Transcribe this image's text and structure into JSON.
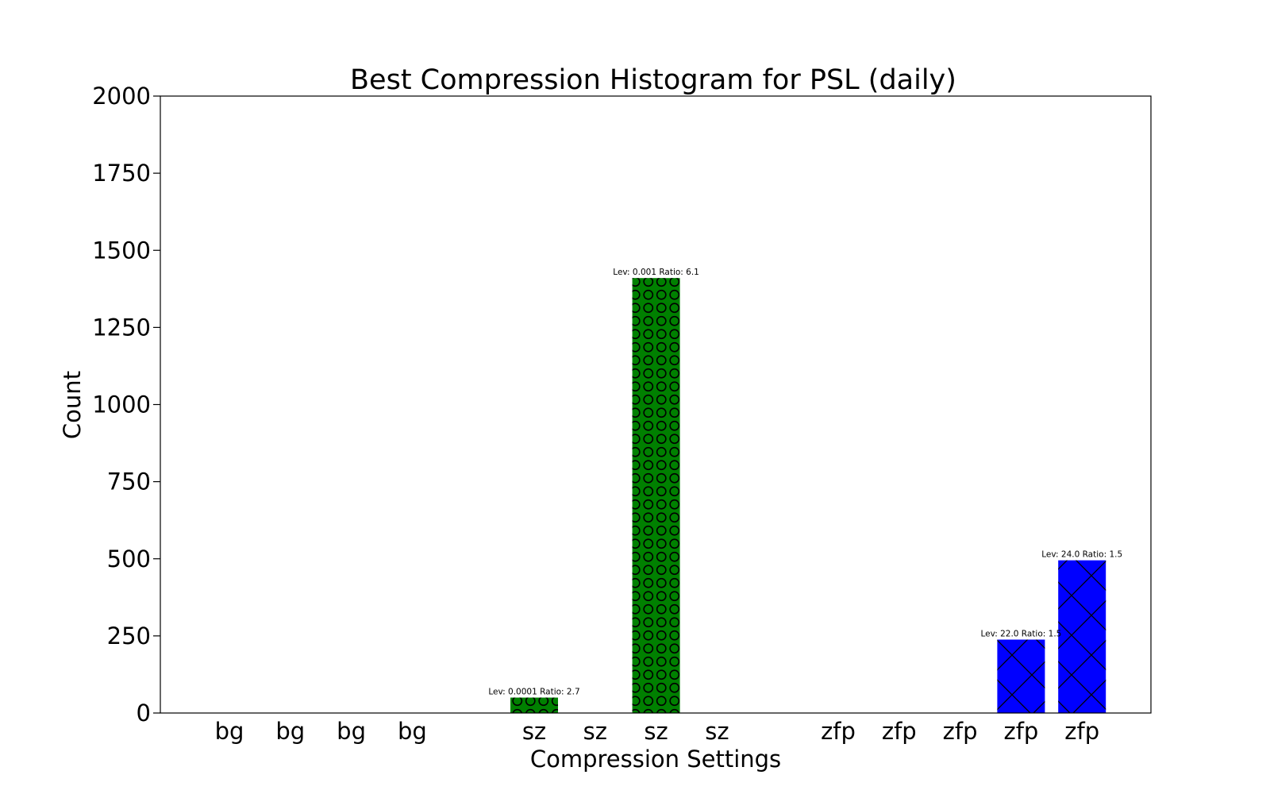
{
  "chart_data": {
    "type": "bar",
    "title": "Best Compression Histogram for PSL (daily)",
    "xlabel": "Compression Settings",
    "ylabel": "Count",
    "ylim": [
      0,
      2000
    ],
    "yticks": [
      0,
      250,
      500,
      750,
      1000,
      1250,
      1500,
      1750,
      2000
    ],
    "grid": false,
    "categories": [
      "bg",
      "bg",
      "bg",
      "bg",
      "sz",
      "sz",
      "sz",
      "sz",
      "zfp",
      "zfp",
      "zfp",
      "zfp",
      "zfp"
    ],
    "values": [
      0,
      0,
      0,
      0,
      50,
      0,
      1410,
      0,
      0,
      0,
      0,
      238,
      495
    ],
    "bar_colors": [
      "#008000",
      "#008000",
      "#008000",
      "#008000",
      "#008000",
      "#008000",
      "#008000",
      "#008000",
      "#0000ff",
      "#0000ff",
      "#0000ff",
      "#0000ff",
      "#0000ff"
    ],
    "bar_hatches": [
      "",
      "",
      "",
      "",
      "circles",
      "",
      "circles",
      "",
      "",
      "",
      "",
      "cross",
      "cross"
    ],
    "bar_labels": [
      "",
      "",
      "",
      "",
      "Lev: 0.0001 Ratio: 2.7",
      "",
      "Lev: 0.001 Ratio: 6.1",
      "",
      "",
      "",
      "",
      "Lev: 22.0 Ratio: 1.5",
      "Lev: 24.0 Ratio: 1.5"
    ]
  }
}
